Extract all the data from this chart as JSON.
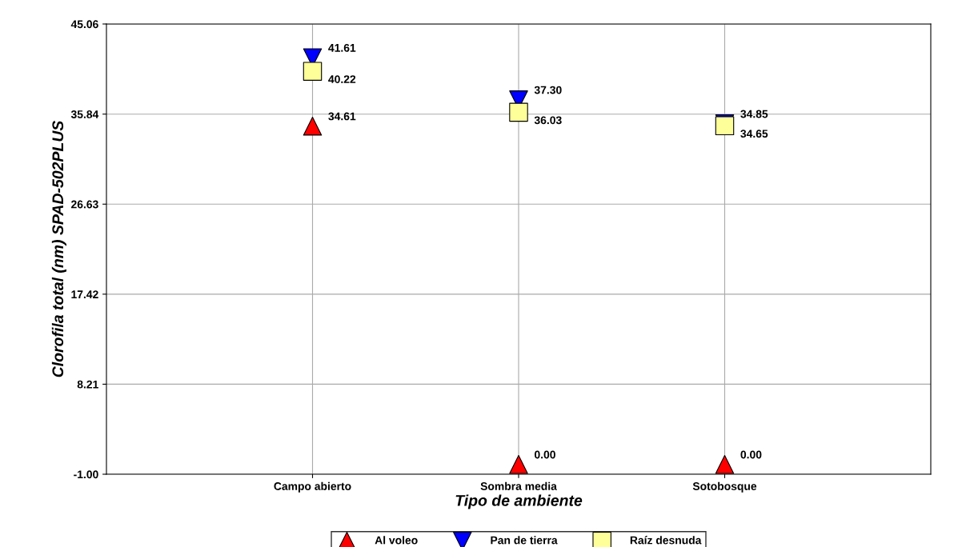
{
  "chart_data": {
    "type": "scatter",
    "xlabel": "Tipo de ambiente",
    "ylabel": "Clorofila total (nm) SPAD-502PLUS",
    "categories": [
      "Campo abierto",
      "Sombra media",
      "Sotobosque"
    ],
    "series": [
      {
        "name": "Al voleo",
        "color": "#ff0000",
        "marker": "triangle",
        "values": [
          34.61,
          0.0,
          0.0
        ],
        "value_labels": [
          "34.61",
          "0.00",
          "0.00"
        ]
      },
      {
        "name": "Pan de tierra",
        "color": "#0000ff",
        "marker": "triangle_down",
        "values": [
          41.61,
          37.3,
          34.85
        ],
        "value_labels": [
          "41.61",
          "37.30",
          "34.85"
        ]
      },
      {
        "name": "Raíz desnuda",
        "color": "#ffff99",
        "marker": "square",
        "values": [
          40.22,
          36.03,
          34.65
        ],
        "value_labels": [
          "40.22",
          "36.03",
          "34.65"
        ]
      }
    ],
    "ylim": [
      -1.0,
      45.06
    ],
    "yticks": [
      {
        "value": -1.0,
        "label": "-1.00"
      },
      {
        "value": 8.21,
        "label": "8.21"
      },
      {
        "value": 17.42,
        "label": "17.42"
      },
      {
        "value": 26.63,
        "label": "26.63"
      },
      {
        "value": 35.84,
        "label": "35.84"
      },
      {
        "value": 45.06,
        "label": "45.06"
      }
    ],
    "grid": true,
    "legend": "bottom"
  }
}
